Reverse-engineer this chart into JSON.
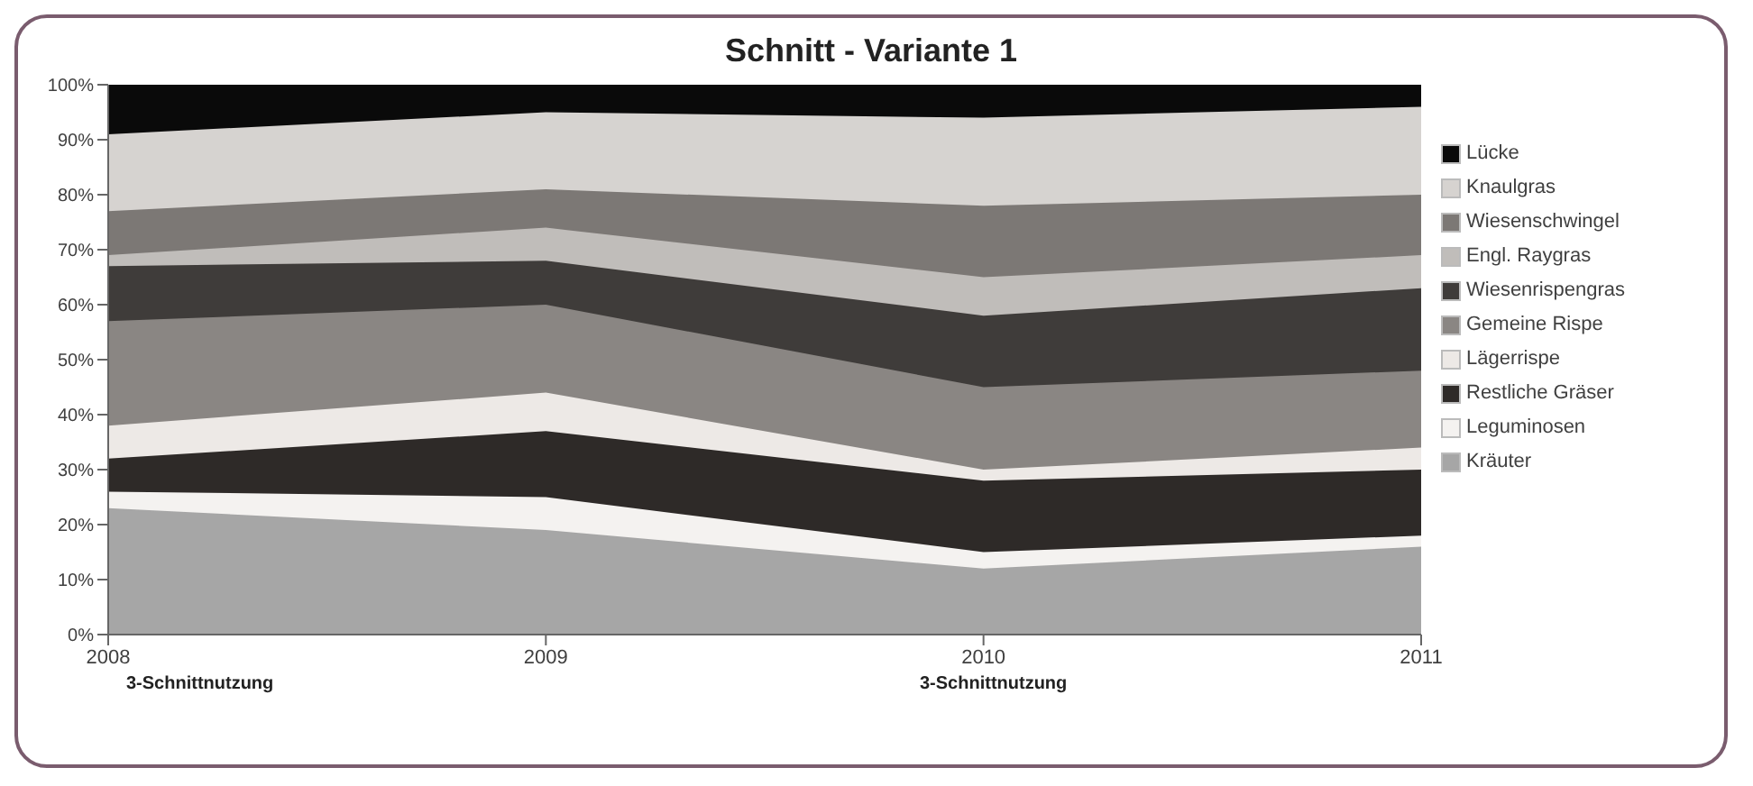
{
  "chart_data": {
    "type": "area",
    "title": "Schnitt - Variante 1",
    "categories": [
      "2008",
      "2009",
      "2010",
      "2011"
    ],
    "stacked": true,
    "legend": "right",
    "ylim": [
      0,
      100
    ],
    "yticks": [
      {
        "value": 0,
        "label": "0%"
      },
      {
        "value": 10,
        "label": "10%"
      },
      {
        "value": 20,
        "label": "20%"
      },
      {
        "value": 30,
        "label": "30%"
      },
      {
        "value": 40,
        "label": "40%"
      },
      {
        "value": 50,
        "label": "50%"
      },
      {
        "value": 60,
        "label": "60%"
      },
      {
        "value": 70,
        "label": "70%"
      },
      {
        "value": 80,
        "label": "80%"
      },
      {
        "value": 90,
        "label": "90%"
      },
      {
        "value": 100,
        "label": "100%"
      }
    ],
    "annotations": [
      "3-Schnittnutzung",
      "3-Schnittnutzung"
    ],
    "series": [
      {
        "name": "Kräuter",
        "color": "#a6a6a6",
        "values": [
          23,
          19,
          12,
          16
        ]
      },
      {
        "name": "Leguminosen",
        "color": "#f4f2f0",
        "values": [
          3,
          6,
          3,
          2
        ]
      },
      {
        "name": "Restliche Gräser",
        "color": "#2e2a28",
        "values": [
          6,
          12,
          13,
          12
        ]
      },
      {
        "name": "Lägerrispe",
        "color": "#ede9e6",
        "values": [
          6,
          7,
          2,
          4
        ]
      },
      {
        "name": "Gemeine Rispe",
        "color": "#8a8683",
        "values": [
          19,
          16,
          15,
          14
        ]
      },
      {
        "name": "Wiesenrispengras",
        "color": "#3f3c3a",
        "values": [
          10,
          8,
          13,
          15
        ]
      },
      {
        "name": "Engl. Raygras",
        "color": "#c0bdba",
        "values": [
          2,
          6,
          7,
          6
        ]
      },
      {
        "name": "Wiesenschwingel",
        "color": "#7c7875",
        "values": [
          8,
          7,
          13,
          11
        ]
      },
      {
        "name": "Knaulgras",
        "color": "#d6d3d0",
        "values": [
          14,
          14,
          16,
          16
        ]
      },
      {
        "name": "Lücke",
        "color": "#0a0a0a",
        "values": [
          9,
          5,
          6,
          4
        ]
      }
    ]
  }
}
